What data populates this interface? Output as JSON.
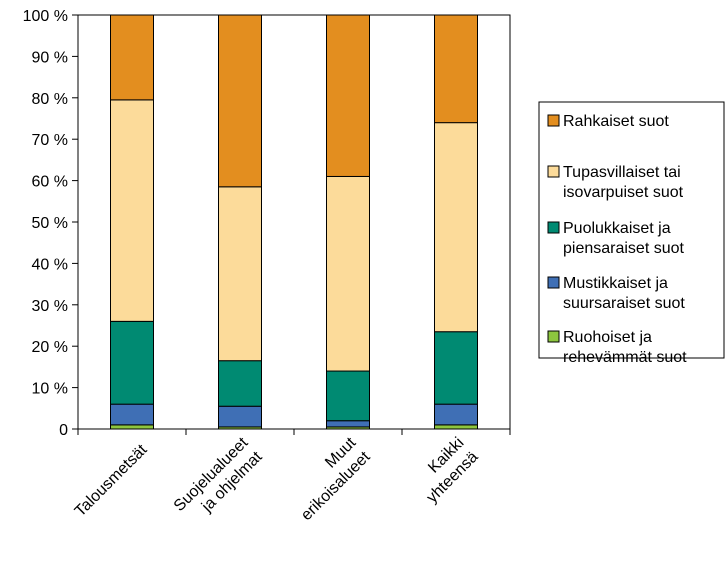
{
  "chart_data": {
    "type": "bar",
    "stacked": true,
    "ylim": [
      0,
      100
    ],
    "yticks": [
      "0",
      "10 %",
      "20 %",
      "30 %",
      "40 %",
      "50 %",
      "60 %",
      "70 %",
      "80 %",
      "90 %",
      "100 %"
    ],
    "categories": [
      [
        "Talousmetsät"
      ],
      [
        "Suojelualueet",
        "ja ohjelmat"
      ],
      [
        "Muut",
        "erikoisalueet"
      ],
      [
        "Kaikki",
        "yhteensä"
      ]
    ],
    "series": [
      {
        "name": [
          "Ruohoiset ja",
          "rehevämmät suot"
        ],
        "color": "#8dc63f",
        "values": [
          1,
          0.5,
          0.5,
          1
        ]
      },
      {
        "name": [
          "Mustikkaiset ja",
          "suursaraiset suot"
        ],
        "color": "#3f6fb5",
        "values": [
          5,
          5,
          1.5,
          5
        ]
      },
      {
        "name": [
          "Puolukkaiset ja",
          "piensaraiset suot"
        ],
        "color": "#008a72",
        "values": [
          20,
          11,
          12,
          17.5
        ]
      },
      {
        "name": [
          "Tupasvillaiset tai",
          "isovarpuiset suot"
        ],
        "color": "#fcdb9a",
        "values": [
          53.5,
          42,
          47,
          50.5
        ]
      },
      {
        "name": [
          "Rahkaiset suot"
        ],
        "color": "#e38e1f",
        "values": [
          20.5,
          41.5,
          39,
          26
        ]
      }
    ],
    "legend_position": "right",
    "grid": false
  }
}
